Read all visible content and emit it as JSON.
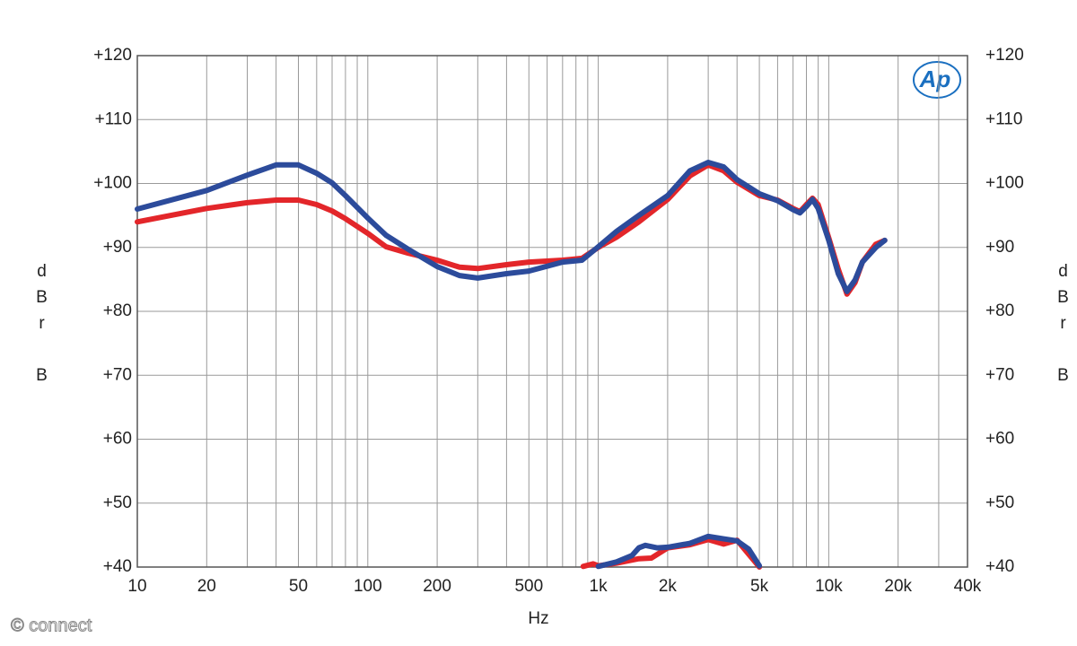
{
  "chart_data": {
    "type": "line",
    "xlabel": "Hz",
    "ylabel": "dBr B",
    "logo": "Ap",
    "watermark": "© connect",
    "xscale": "log",
    "grid": true,
    "xlim": [
      10,
      40000
    ],
    "ylim": [
      40,
      120
    ],
    "xticks": [
      10,
      20,
      50,
      100,
      200,
      500,
      {
        "value": 1000,
        "label": "1k"
      },
      {
        "value": 2000,
        "label": "2k"
      },
      {
        "value": 5000,
        "label": "5k"
      },
      {
        "value": 10000,
        "label": "10k"
      },
      {
        "value": 20000,
        "label": "20k"
      },
      {
        "value": 40000,
        "label": "40k"
      }
    ],
    "xgrid": [
      10,
      20,
      30,
      40,
      50,
      60,
      70,
      80,
      90,
      100,
      200,
      300,
      400,
      500,
      600,
      700,
      800,
      900,
      1000,
      2000,
      3000,
      4000,
      5000,
      6000,
      7000,
      8000,
      9000,
      10000,
      20000,
      30000,
      40000
    ],
    "yticks": [
      {
        "value": 40,
        "label": "+40"
      },
      {
        "value": 50,
        "label": "+50"
      },
      {
        "value": 60,
        "label": "+60"
      },
      {
        "value": 70,
        "label": "+70"
      },
      {
        "value": 80,
        "label": "+80"
      },
      {
        "value": 90,
        "label": "+90"
      },
      {
        "value": 100,
        "label": "+100"
      },
      {
        "value": 110,
        "label": "+110"
      },
      {
        "value": 120,
        "label": "+120"
      }
    ],
    "series": [
      {
        "color": "#e3262a",
        "x": [
          10,
          20,
          30,
          40,
          50,
          60,
          70,
          80,
          100,
          120,
          150,
          200,
          250,
          300,
          400,
          500,
          700,
          850,
          1000,
          1200,
          1500,
          2000,
          2500,
          3000,
          3500,
          4000,
          5000,
          6000,
          7000,
          7500,
          8000,
          8500,
          9000,
          10000,
          11000,
          12000,
          13000,
          14000,
          16000,
          17500,
          null,
          860,
          950,
          1000,
          1200,
          1500,
          1700,
          2000,
          2500,
          3000,
          3500,
          4000,
          4500,
          5000
        ],
        "values": [
          94.0,
          96.1,
          97.0,
          97.4,
          97.4,
          96.7,
          95.7,
          94.5,
          92.2,
          90.1,
          89.1,
          88.0,
          86.9,
          86.7,
          87.3,
          87.7,
          88.0,
          88.3,
          90.0,
          91.6,
          94.0,
          97.5,
          101.2,
          102.9,
          102.0,
          100.2,
          98.1,
          97.4,
          96.1,
          95.6,
          96.7,
          97.7,
          96.7,
          91.5,
          86.6,
          82.7,
          84.5,
          87.7,
          90.5,
          91.1,
          null,
          40.1,
          40.5,
          40.2,
          40.6,
          41.3,
          41.4,
          43.0,
          43.5,
          44.3,
          43.6,
          44.2,
          42.0,
          40.0
        ]
      },
      {
        "color": "#2c4b9b",
        "x": [
          10,
          20,
          30,
          40,
          50,
          60,
          70,
          80,
          100,
          120,
          150,
          200,
          250,
          300,
          400,
          500,
          700,
          850,
          1000,
          1200,
          1500,
          2000,
          2500,
          3000,
          3500,
          4000,
          5000,
          6000,
          7000,
          7500,
          8000,
          8500,
          9000,
          10000,
          11000,
          12000,
          13000,
          14000,
          16000,
          17500,
          null,
          1000,
          1200,
          1400,
          1500,
          1600,
          1800,
          2000,
          2500,
          3000,
          3500,
          4000,
          4500,
          5000
        ],
        "values": [
          96.0,
          98.9,
          101.3,
          102.9,
          102.9,
          101.6,
          100.1,
          98.1,
          94.6,
          91.9,
          89.7,
          87.0,
          85.6,
          85.2,
          85.9,
          86.3,
          87.7,
          88.0,
          90.1,
          92.5,
          95.0,
          98.1,
          102.0,
          103.3,
          102.6,
          100.6,
          98.4,
          97.3,
          95.9,
          95.4,
          96.4,
          97.5,
          96.1,
          91.1,
          85.9,
          83.1,
          84.9,
          87.7,
          90.0,
          91.1,
          null,
          40.1,
          40.8,
          41.8,
          43.0,
          43.4,
          43.0,
          43.1,
          43.7,
          44.8,
          44.4,
          44.1,
          42.8,
          40.2
        ]
      }
    ]
  }
}
